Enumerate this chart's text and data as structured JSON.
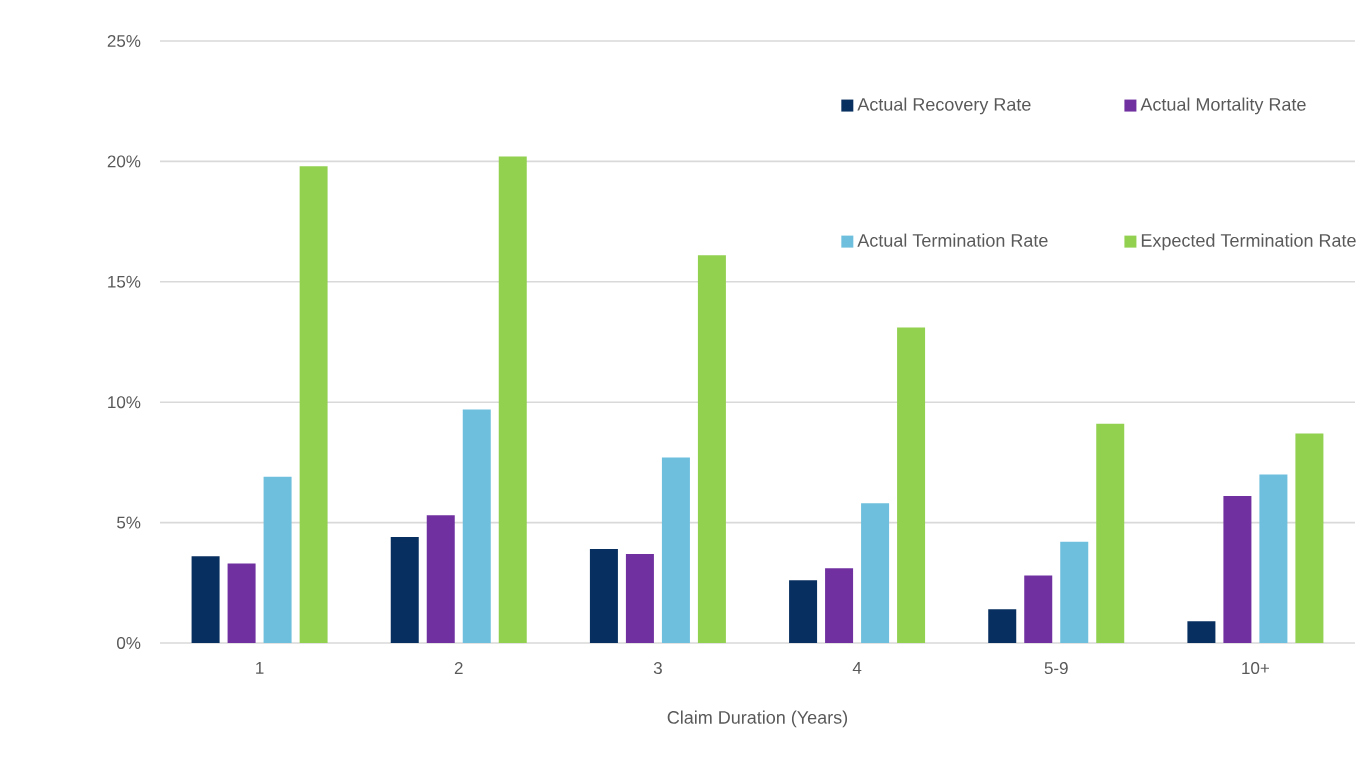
{
  "chart_data": {
    "type": "bar",
    "xlabel": "Claim Duration (Years)",
    "categories": [
      "1",
      "2",
      "3",
      "4",
      "5-9",
      "10+"
    ],
    "series": [
      {
        "name": "Actual Recovery Rate",
        "color": "#072f5f",
        "values": [
          3.6,
          4.4,
          3.9,
          2.6,
          1.4,
          0.9
        ]
      },
      {
        "name": "Actual Mortality Rate",
        "color": "#7030a0",
        "values": [
          3.3,
          5.3,
          3.7,
          3.1,
          2.8,
          6.1
        ]
      },
      {
        "name": "Actual Termination Rate",
        "color": "#6dbfdd",
        "values": [
          6.9,
          9.7,
          7.7,
          5.8,
          4.2,
          7.0
        ]
      },
      {
        "name": "Expected Termination Rate",
        "color": "#92d050",
        "values": [
          19.8,
          20.2,
          16.1,
          13.1,
          9.1,
          8.7
        ]
      }
    ],
    "ylim": [
      0,
      25
    ],
    "yticks": [
      {
        "value": 0,
        "label": "0%"
      },
      {
        "value": 5,
        "label": "5%"
      },
      {
        "value": 10,
        "label": "10%"
      },
      {
        "value": 15,
        "label": "15%"
      },
      {
        "value": 20,
        "label": "20%"
      },
      {
        "value": 25,
        "label": "25%"
      }
    ],
    "grid": "y",
    "legend": "top right"
  }
}
